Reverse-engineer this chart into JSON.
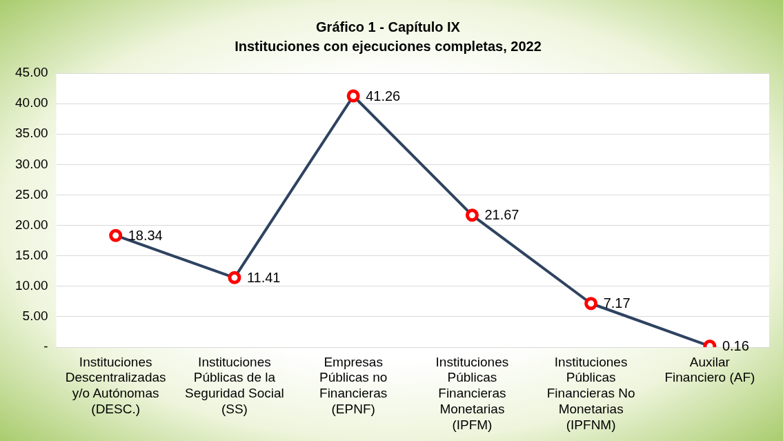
{
  "chart_data": {
    "type": "line",
    "title": "Gráfico 1 - Capítulo IX",
    "subtitle": "Instituciones con ejecuciones completas, 2022",
    "categories": [
      "Instituciones Descentralizadas y/o Autónomas (DESC.)",
      "Instituciones Públicas de la Seguridad Social (SS)",
      "Empresas Públicas no Financieras (EPNF)",
      "Instituciones Públicas Financieras Monetarias (IPFM)",
      "Instituciones Públicas Financieras No Monetarias (IPFNM)",
      "Auxilar Financiero (AF)"
    ],
    "series": [
      {
        "color": "#2e4360",
        "colors": [
          "#ff0000",
          "#ff0000",
          "#ff0000",
          "#ff0000",
          "#ff0000",
          "#ff0000"
        ],
        "values": [
          18.34,
          11.41,
          41.26,
          21.67,
          7.17,
          0.16
        ]
      }
    ],
    "ylim": [
      0,
      45
    ],
    "yticks": [
      {
        "value": 0,
        "label": "-"
      },
      {
        "value": 5,
        "label": "5.00"
      },
      {
        "value": 10,
        "label": "10.00"
      },
      {
        "value": 15,
        "label": "15.00"
      },
      {
        "value": 20,
        "label": "20.00"
      },
      {
        "value": 25,
        "label": "25.00"
      },
      {
        "value": 30,
        "label": "30.00"
      },
      {
        "value": 35,
        "label": "35.00"
      },
      {
        "value": 40,
        "label": "40.00"
      },
      {
        "value": 45,
        "label": "45.00"
      }
    ],
    "grid": "y",
    "legend": false,
    "marker": "circle",
    "line_style": "solid",
    "data_labels": true
  }
}
